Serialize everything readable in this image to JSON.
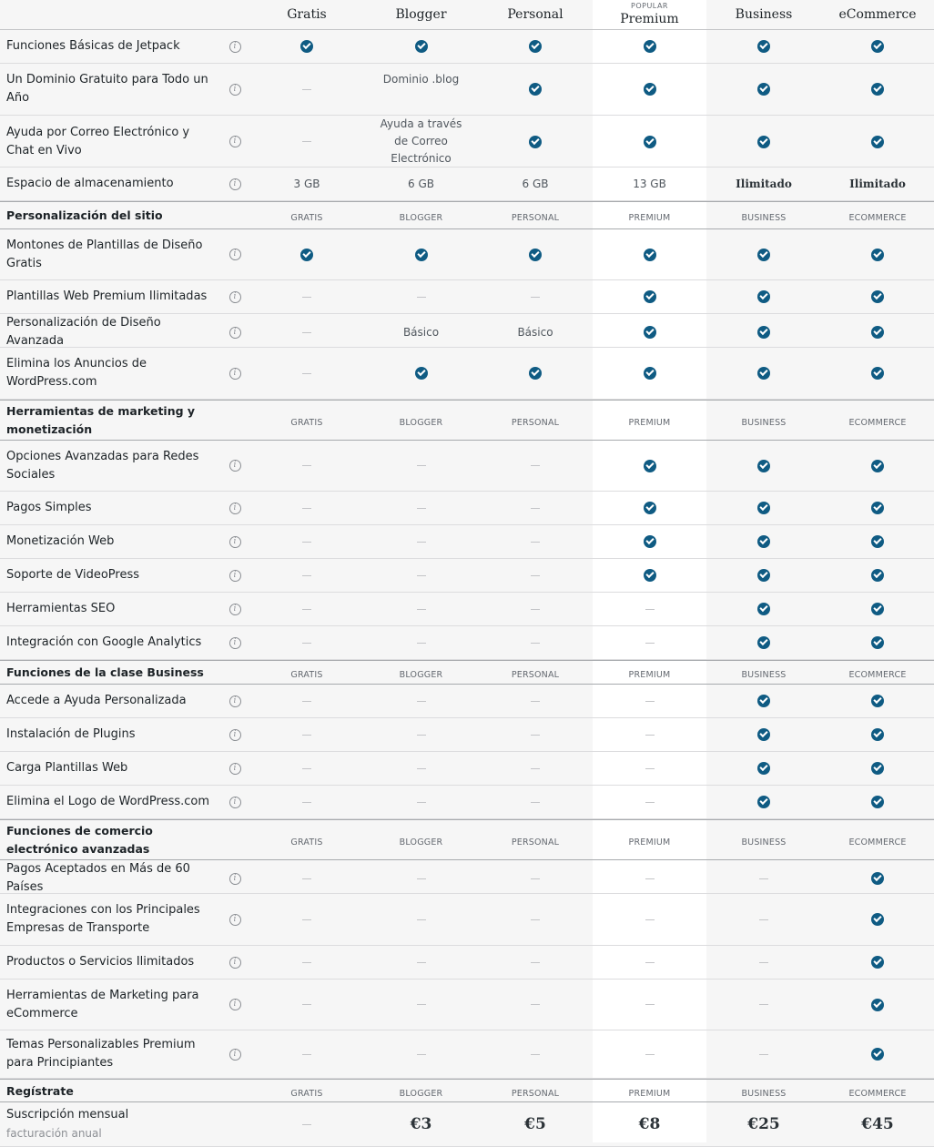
{
  "plans": [
    {
      "name": "Gratis",
      "tag": ""
    },
    {
      "name": "Blogger",
      "tag": ""
    },
    {
      "name": "Personal",
      "tag": ""
    },
    {
      "name": "Premium",
      "tag": "POPULAR"
    },
    {
      "name": "Business",
      "tag": ""
    },
    {
      "name": "eCommerce",
      "tag": ""
    }
  ],
  "plan_keys": [
    "GRATIS",
    "BLOGGER",
    "PERSONAL",
    "PREMIUM",
    "BUSINESS",
    "ECOMMERCE"
  ],
  "colors": {
    "check": "#0f5b83",
    "premium_column": "#ffffff",
    "background": "#f6f6f6"
  },
  "rows": [
    {
      "type": "feature",
      "h": 37,
      "label": "Funciones Básicas de Jetpack",
      "cells": [
        "check",
        "check",
        "check",
        "check",
        "check",
        "check"
      ]
    },
    {
      "type": "feature",
      "h": 57,
      "label": "Un Dominio Gratuito para Todo un Año",
      "cells": [
        "dash",
        {
          "text": "Dominio .blog",
          "top": true
        },
        "check",
        "check",
        "check",
        "check"
      ]
    },
    {
      "type": "feature",
      "h": 57,
      "label": "Ayuda por Correo Electrónico y Chat en Vivo",
      "cells": [
        "dash",
        {
          "text": "Ayuda a través de Correo Electrónico"
        },
        "check",
        "check",
        "check",
        "check"
      ]
    },
    {
      "type": "feature",
      "h": 37,
      "label": "Espacio de almacenamiento",
      "cells": [
        {
          "text": "3 GB"
        },
        {
          "text": "6 GB"
        },
        {
          "text": "6 GB"
        },
        {
          "text": "13 GB"
        },
        {
          "text": "Ilimitado",
          "bold": true
        },
        {
          "text": "Ilimitado",
          "bold": true
        }
      ]
    },
    {
      "type": "section",
      "h": 31,
      "label": "Personalización del sitio"
    },
    {
      "type": "feature",
      "h": 56,
      "label": "Montones de Plantillas de Diseño Gratis",
      "cells": [
        "check",
        "check",
        "check",
        "check",
        "check",
        "check"
      ]
    },
    {
      "type": "feature",
      "h": 37,
      "label": "Plantillas Web Premium Ilimitadas",
      "cells": [
        "dash",
        "dash",
        "dash",
        "check",
        "check",
        "check"
      ]
    },
    {
      "type": "feature",
      "h": 37,
      "label": "Personalización de Diseño Avanzada",
      "cells": [
        "dash",
        {
          "text": "Básico"
        },
        {
          "text": "Básico"
        },
        "check",
        "check",
        "check"
      ]
    },
    {
      "type": "feature",
      "h": 57,
      "label": "Elimina los Anuncios de WordPress.com",
      "cells": [
        "dash",
        "check",
        "check",
        "check",
        "check",
        "check"
      ]
    },
    {
      "type": "section",
      "h": 45,
      "label": "Herramientas de marketing y monetización"
    },
    {
      "type": "feature",
      "h": 56,
      "label": "Opciones Avanzadas para Redes Sociales",
      "cells": [
        "dash",
        "dash",
        "dash",
        "check",
        "check",
        "check"
      ]
    },
    {
      "type": "feature",
      "h": 37,
      "label": "Pagos Simples",
      "cells": [
        "dash",
        "dash",
        "dash",
        "check",
        "check",
        "check"
      ]
    },
    {
      "type": "feature",
      "h": 37,
      "label": "Monetización Web",
      "cells": [
        "dash",
        "dash",
        "dash",
        "check",
        "check",
        "check"
      ]
    },
    {
      "type": "feature",
      "h": 37,
      "label": "Soporte de VideoPress",
      "cells": [
        "dash",
        "dash",
        "dash",
        "check",
        "check",
        "check"
      ]
    },
    {
      "type": "feature",
      "h": 37,
      "label": "Herramientas SEO",
      "cells": [
        "dash",
        "dash",
        "dash",
        "dash",
        "check",
        "check"
      ]
    },
    {
      "type": "feature",
      "h": 37,
      "label": "Integración con Google Analytics",
      "cells": [
        "dash",
        "dash",
        "dash",
        "dash",
        "check",
        "check"
      ]
    },
    {
      "type": "section",
      "h": 27,
      "label": "Funciones de la clase Business"
    },
    {
      "type": "feature",
      "h": 37,
      "label": "Accede a Ayuda Personalizada",
      "cells": [
        "dash",
        "dash",
        "dash",
        "dash",
        "check",
        "check"
      ]
    },
    {
      "type": "feature",
      "h": 37,
      "label": "Instalación de Plugins",
      "cells": [
        "dash",
        "dash",
        "dash",
        "dash",
        "check",
        "check"
      ]
    },
    {
      "type": "feature",
      "h": 37,
      "label": "Carga Plantillas Web",
      "cells": [
        "dash",
        "dash",
        "dash",
        "dash",
        "check",
        "check"
      ]
    },
    {
      "type": "feature",
      "h": 37,
      "label": "Elimina el Logo de WordPress.com",
      "cells": [
        "dash",
        "dash",
        "dash",
        "dash",
        "check",
        "check"
      ]
    },
    {
      "type": "section",
      "h": 45,
      "label": "Funciones de comercio electrónico avanzadas"
    },
    {
      "type": "feature",
      "h": 37,
      "label": "Pagos Aceptados en Más de 60 Países",
      "cells": [
        "dash",
        "dash",
        "dash",
        "dash",
        "dash",
        "check"
      ]
    },
    {
      "type": "feature",
      "h": 57,
      "label": "Integraciones con los Principales Empresas de Transporte",
      "cells": [
        "dash",
        "dash",
        "dash",
        "dash",
        "dash",
        "check"
      ]
    },
    {
      "type": "feature",
      "h": 37,
      "label": "Productos o Servicios Ilimitados",
      "cells": [
        "dash",
        "dash",
        "dash",
        "dash",
        "dash",
        "check"
      ]
    },
    {
      "type": "feature",
      "h": 56,
      "label": "Herramientas de Marketing para eCommerce",
      "cells": [
        "dash",
        "dash",
        "dash",
        "dash",
        "dash",
        "check"
      ]
    },
    {
      "type": "feature",
      "h": 53,
      "label": "Temas Personalizables Premium para Principiantes",
      "cells": [
        "dash",
        "dash",
        "dash",
        "dash",
        "dash",
        "check"
      ]
    },
    {
      "type": "section",
      "h": 26,
      "label": "Regístrate"
    },
    {
      "type": "price",
      "h": 49,
      "label": "Suscripción mensual",
      "sublabel": "facturación anual",
      "cells": [
        "dash",
        {
          "text": "€3"
        },
        {
          "text": "€5"
        },
        {
          "text": "€8"
        },
        {
          "text": "€25"
        },
        {
          "text": "€45"
        }
      ]
    }
  ]
}
